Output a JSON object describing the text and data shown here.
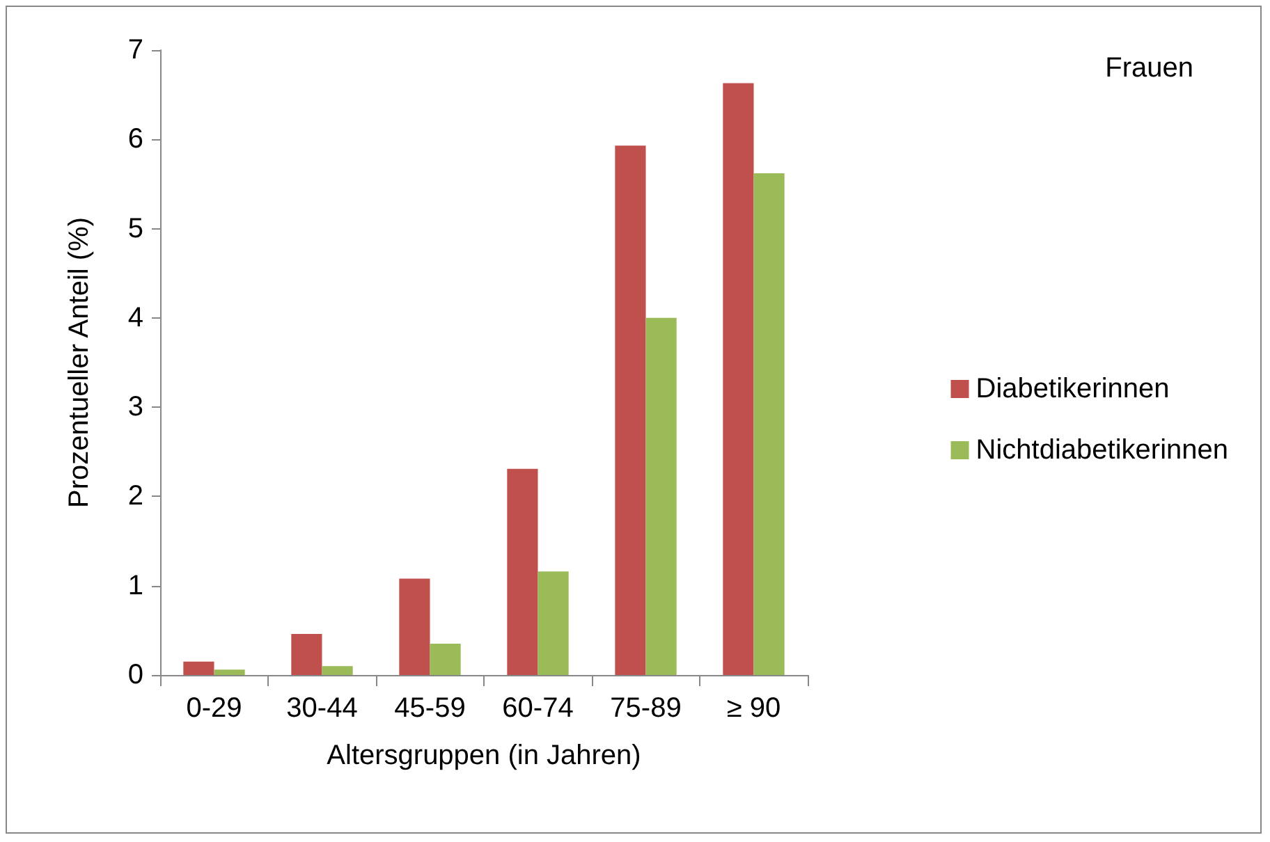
{
  "chart_data": {
    "type": "bar",
    "xlabel": "Altersgruppen (in Jahren)",
    "ylabel": "Prozentueller Anteil (%)",
    "annotations": [
      "Frauen"
    ],
    "categories": [
      "0-29",
      "30-44",
      "45-59",
      "60-74",
      "75-89",
      "≥ 90"
    ],
    "series": [
      {
        "name": "Diabetikerinnen",
        "color": "#c0504d",
        "values": [
          0.15,
          0.46,
          1.08,
          2.31,
          5.93,
          6.63
        ]
      },
      {
        "name": "Nichtdiabetikerinnen",
        "color": "#9bbb59",
        "values": [
          0.06,
          0.1,
          0.35,
          1.16,
          4.0,
          5.62
        ]
      }
    ],
    "ylim": [
      0,
      7
    ],
    "yticks": [
      0,
      1,
      2,
      3,
      4,
      5,
      6,
      7
    ],
    "grid": false,
    "legend": "right"
  }
}
